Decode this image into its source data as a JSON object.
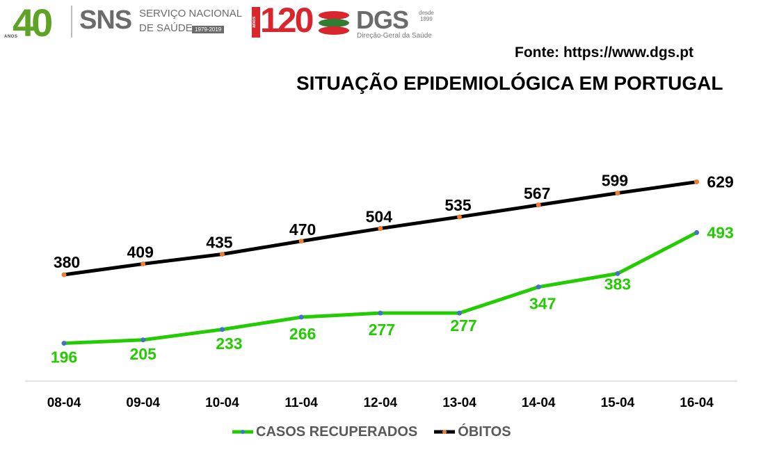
{
  "header": {
    "logo_40_number": "40",
    "logo_40_anos": "ANOS",
    "sns_name": "SNS",
    "sns_line1": "SERVIÇO NACIONAL",
    "sns_line2": "DE SAÚDE",
    "sns_years": "1979-2019",
    "logo_120_anos": "anos",
    "logo_120_number": "120",
    "dgs_name": "DGS",
    "dgs_desde": "desde",
    "dgs_year": "1899",
    "dgs_sub": "Direção-Geral da Saúde",
    "source": "Fonte: https://www.dgs.pt"
  },
  "colors": {
    "recovered": "#22cc00",
    "recovered_marker": "#4472c4",
    "deaths": "#000000",
    "deaths_marker": "#ed7d31",
    "axis": "#d9d9d9",
    "sns_red": "#d9262c",
    "sns_green": "#5fa324"
  },
  "chart_data": {
    "type": "line",
    "title": "SITUAÇÃO EPIDEMIOLÓGICA EM PORTUGAL",
    "categories": [
      "08-04",
      "09-04",
      "10-04",
      "11-04",
      "12-04",
      "13-04",
      "14-04",
      "15-04",
      "16-04"
    ],
    "series": [
      {
        "name": "CASOS RECUPERADOS",
        "values": [
          196,
          205,
          233,
          266,
          277,
          277,
          347,
          383,
          493
        ]
      },
      {
        "name": "ÓBITOS",
        "values": [
          380,
          409,
          435,
          470,
          504,
          535,
          567,
          599,
          629
        ]
      }
    ],
    "xlabel": "",
    "ylabel": "",
    "ylim": [
      0,
      700
    ],
    "legend": "bottom-center",
    "grid": false
  }
}
